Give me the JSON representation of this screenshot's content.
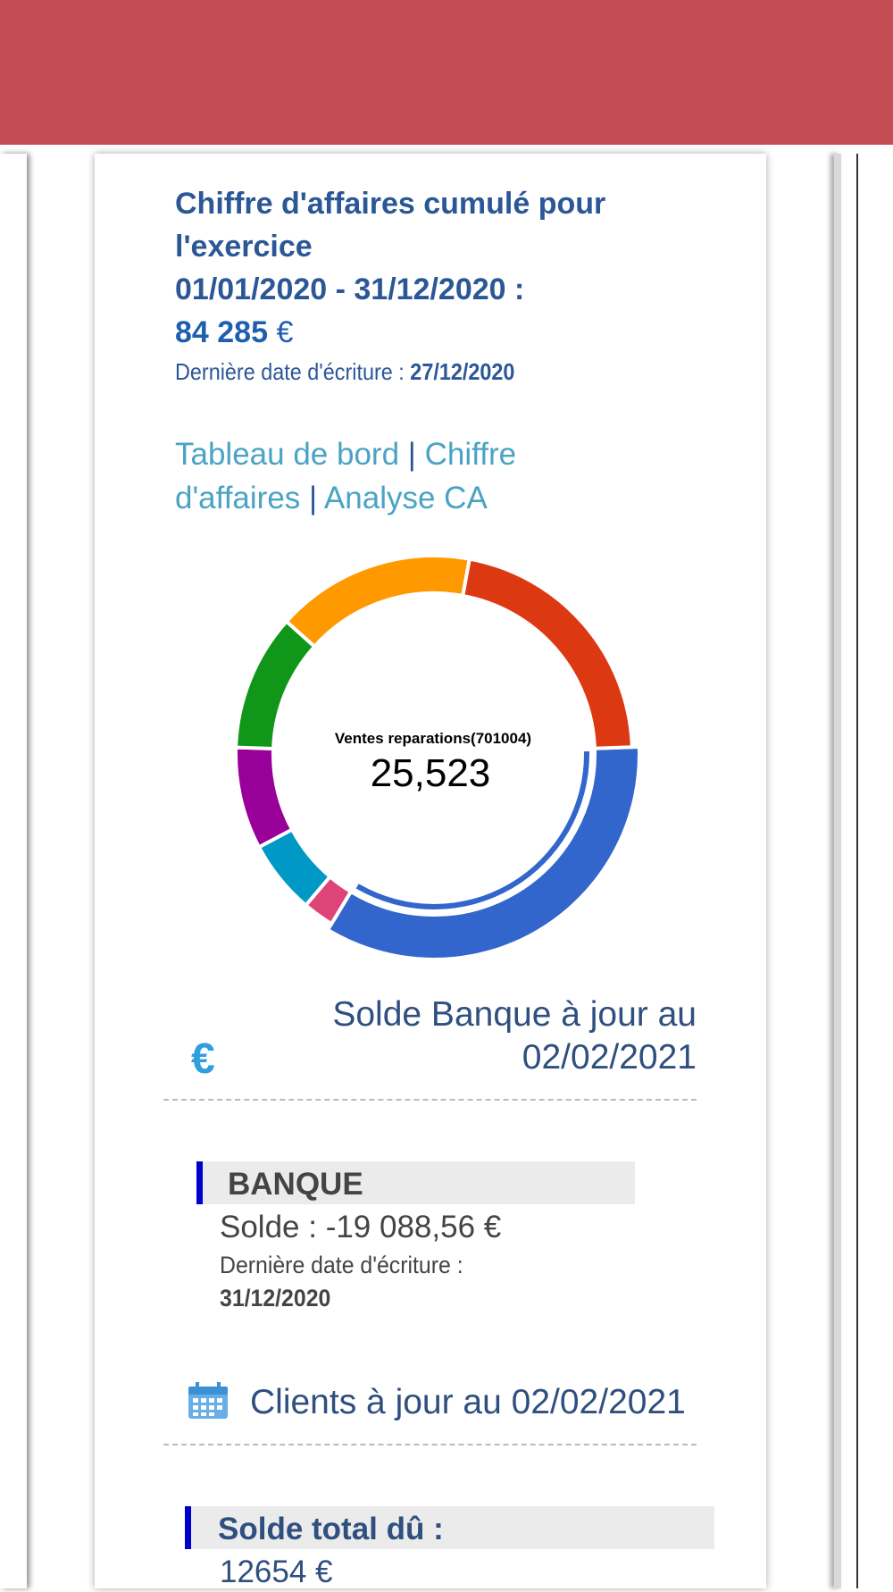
{
  "ca": {
    "title_line1": "Chiffre d'affaires cumulé pour l'exercice",
    "period": "01/01/2020 - 31/12/2020 :",
    "amount": "84 285",
    "currency": "€",
    "last_date_label": "Dernière date d'écriture :",
    "last_date_value": "27/12/2020"
  },
  "links": {
    "dashboard": "Tableau de bord",
    "revenue": "Chiffre d'affaires",
    "analysis": "Analyse CA",
    "separator": "|"
  },
  "chart_data": {
    "type": "pie",
    "center_label": "Ventes reparations(701004)",
    "center_value": "25,523",
    "highlighted": 0,
    "slices": [
      {
        "value": 25523,
        "color": "#3366cc"
      },
      {
        "value": 1900,
        "color": "#dd4477"
      },
      {
        "value": 4500,
        "color": "#0099c6"
      },
      {
        "value": 6200,
        "color": "#990099"
      },
      {
        "value": 8300,
        "color": "#109618"
      },
      {
        "value": 12100,
        "color": "#ff9900"
      },
      {
        "value": 16100,
        "color": "#dc3912"
      }
    ]
  },
  "bank_section": {
    "title": "Solde Banque à jour au 02/02/2021",
    "icon": "euro-icon",
    "account_name": "BANQUE",
    "solde": "Solde : -19 088,56 €",
    "last_date_label": "Dernière date d'écriture :",
    "last_date_value": "31/12/2020"
  },
  "clients_section": {
    "title": "Clients à jour au 02/02/2021",
    "icon": "calendar-icon",
    "due_label": "Solde total dû :",
    "due_amount": "12654 €"
  },
  "colors": {
    "header": "#c24d55",
    "accent_border": "#0000cc",
    "title_blue": "#2b5797",
    "link_blue": "#4aa3c4"
  }
}
